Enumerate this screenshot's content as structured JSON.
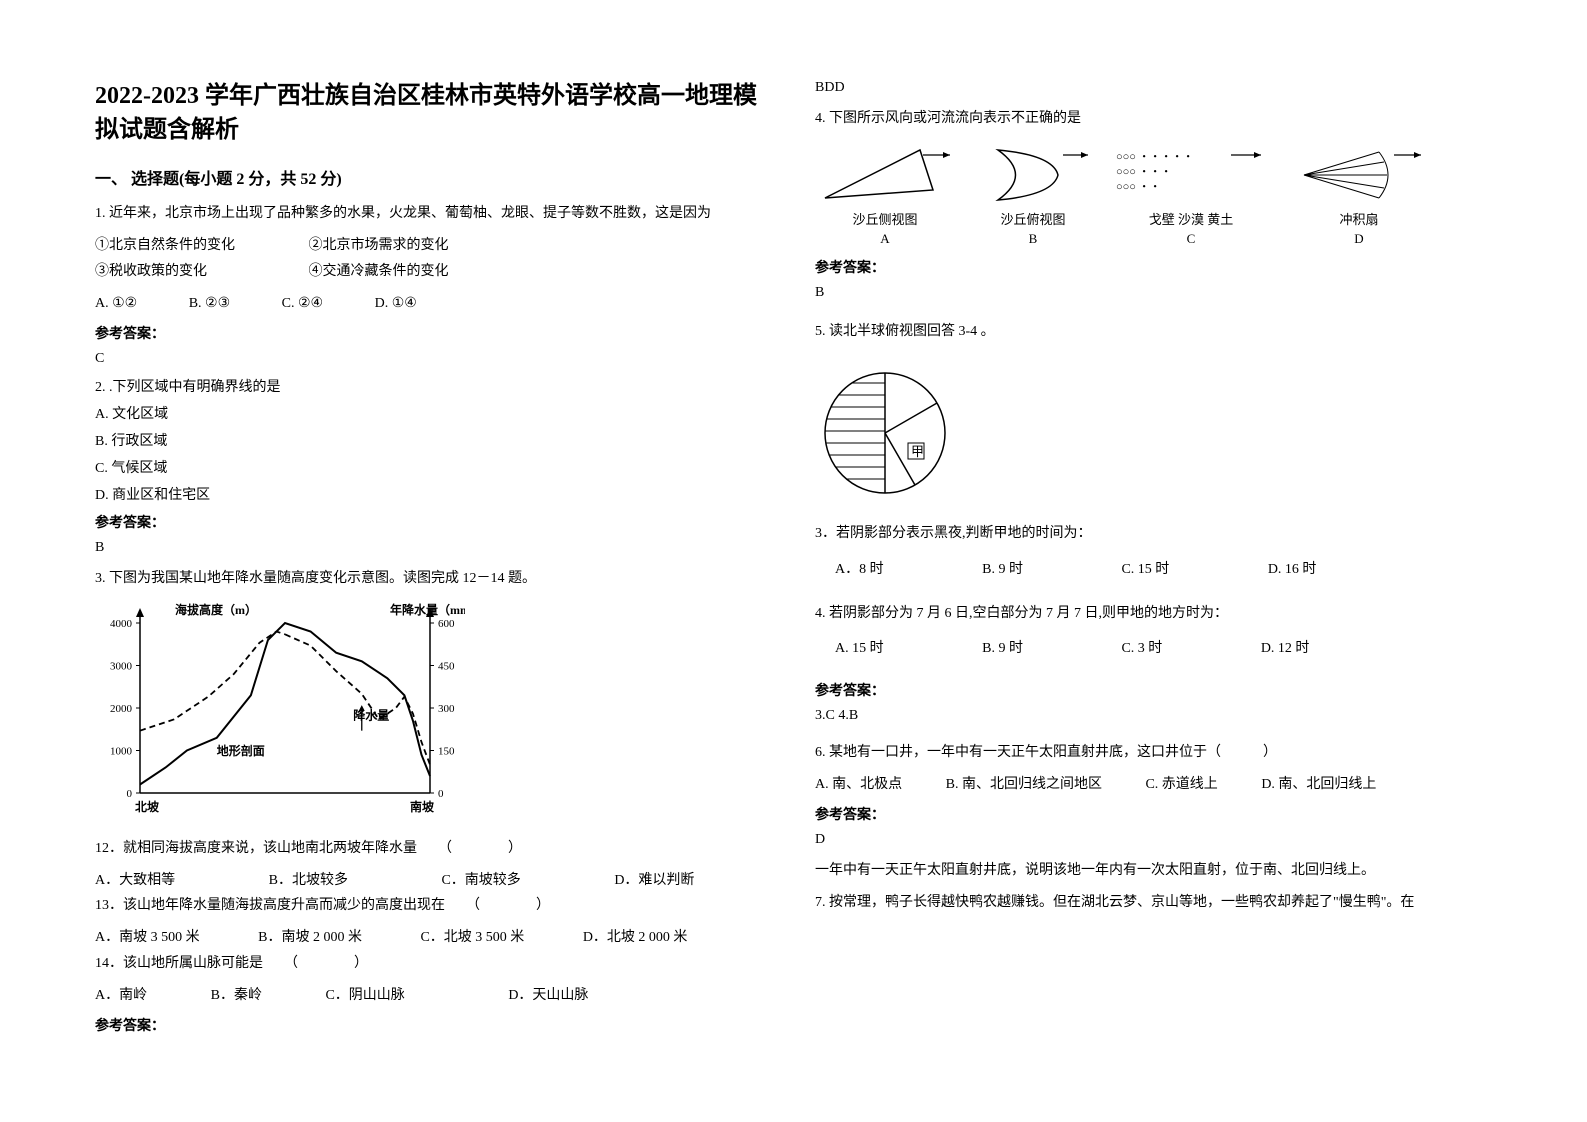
{
  "title": "2022-2023 学年广西壮族自治区桂林市英特外语学校高一地理模拟试题含解析",
  "section1_head": "一、 选择题(每小题 2 分，共 52 分)",
  "ans_label": "参考答案：",
  "q1_stem": "1. 近年来，北京市场上出现了品种繁多的水果，火龙果、葡萄柚、龙眼、提子等数不胜数，这是因为",
  "q1_l1": "①北京自然条件的变化",
  "q1_l2": "②北京市场需求的变化",
  "q1_l3": "③税收政策的变化",
  "q1_l4": "④交通冷藏条件的变化",
  "q1_oA": "A.  ①②",
  "q1_oB": "B.  ②③",
  "q1_oC": "C.  ②④",
  "q1_oD": "D.  ①④",
  "q1_ans": "C",
  "q2_stem": "2. .下列区域中有明确界线的是",
  "q2_oA": "A. 文化区域",
  "q2_oB": "B. 行政区域",
  "q2_oC": "C. 气候区域",
  "q2_oD": "D. 商业区和住宅区",
  "q2_ans": "B",
  "q3_stem": "3. 下图为我国某山地年降水量随高度变化示意图。读图完成 12－14 题。",
  "chart": {
    "type": "line",
    "y1_label": "海拔高度（m）",
    "y2_label": "年降水量（mm）",
    "x_left": "北坡",
    "x_right": "南坡",
    "legend1": "地形剖面",
    "legend2": "降水量",
    "y1_ticks": [
      0,
      1000,
      2000,
      3000,
      4000
    ],
    "y2_ticks": [
      0,
      150,
      300,
      450,
      600
    ],
    "terrain": [
      [
        0,
        200
      ],
      [
        30,
        600
      ],
      [
        55,
        1000
      ],
      [
        90,
        1300
      ],
      [
        130,
        2300
      ],
      [
        150,
        3600
      ],
      [
        170,
        4000
      ],
      [
        200,
        3800
      ],
      [
        230,
        3300
      ],
      [
        260,
        3100
      ],
      [
        290,
        2700
      ],
      [
        310,
        2300
      ],
      [
        320,
        1700
      ],
      [
        330,
        900
      ],
      [
        340,
        400
      ]
    ],
    "precip_n": [
      [
        0,
        220
      ],
      [
        40,
        260
      ],
      [
        80,
        340
      ],
      [
        110,
        420
      ],
      [
        140,
        530
      ],
      [
        160,
        570
      ],
      [
        170,
        560
      ]
    ],
    "precip_s": [
      [
        170,
        560
      ],
      [
        200,
        520
      ],
      [
        230,
        430
      ],
      [
        260,
        350
      ],
      [
        280,
        260
      ],
      [
        300,
        300
      ],
      [
        310,
        340
      ],
      [
        320,
        280
      ],
      [
        330,
        180
      ],
      [
        340,
        100
      ]
    ],
    "colors": {
      "axis": "#000000",
      "terrain": "#000000",
      "precip": "#000000",
      "bg": "#ffffff"
    },
    "font": {
      "label_size": 12,
      "tick_size": 11
    }
  },
  "q12_stem": "12．就相同海拔高度来说，该山地南北两坡年降水量　　（　　　　）",
  "q12_oA": "A．大致相等",
  "q12_oB": "B．北坡较多",
  "q12_oC": "C．南坡较多",
  "q12_oD": "D．难以判断",
  "q13_stem": "13．该山地年降水量随海拔高度升高而减少的高度出现在　　（　　　　）",
  "q13_oA": "A．南坡 3 500 米",
  "q13_oB": "B．南坡 2 000 米",
  "q13_oC": "C．北坡 3 500 米",
  "q13_oD": "D．北坡 2 000 米",
  "q14_stem": "14．该山地所属山脉可能是　　（　　　　）",
  "q14_oA": "A．南岭",
  "q14_oB": "B．秦岭",
  "q14_oC": "C．阴山山脉",
  "q14_oD": "D．天山山脉",
  "q3block_ans": "BDD",
  "q4_stem": "4. 下图所示风向或河流流向表示不正确的是",
  "dia": {
    "A_cap1": "沙丘侧视图",
    "A_cap2": "A",
    "B_cap1": "沙丘俯视图",
    "B_cap2": "B",
    "C_cap1": "戈壁 沙漠 黄土",
    "C_cap2": "C",
    "D_cap1": "冲积扇",
    "D_cap2": "D",
    "C_dots": "○○○ ・・・・・",
    "colors": {
      "stroke": "#000000"
    }
  },
  "q4_ans": "B",
  "q5_stem": "5. 读北半球俯视图回答 3-4 。",
  "q5_jia": "甲",
  "q5_3_stem": "3．若阴影部分表示黑夜,判断甲地的时间为：",
  "q5_3_oA": "A．8 时",
  "q5_3_oB": "B. 9 时",
  "q5_3_oC": "C. 15 时",
  "q5_3_oD": "D. 16 时",
  "q5_4_stem": "4. 若阴影部分为 7 月 6 日,空白部分为 7 月 7 日,则甲地的地方时为：",
  "q5_4_oA": "A. 15 时",
  "q5_4_oB": "B. 9 时",
  "q5_4_oC": "C. 3 时",
  "q5_4_oD": "D. 12 时",
  "q5_ans": "3.C  4.B",
  "q6_stem": "6. 某地有一口井，一年中有一天正午太阳直射井底，这口井位于（　　　）",
  "q6_oA": "A.  南、北极点",
  "q6_oB": "B.  南、北回归线之间地区",
  "q6_oC": "C.  赤道线上",
  "q6_oD": "D.  南、北回归线上",
  "q6_ans": "D",
  "q6_expl": "一年中有一天正午太阳直射井底，说明该地一年内有一次太阳直射，位于南、北回归线上。",
  "q7_stem": "7. 按常理，鸭子长得越快鸭农越赚钱。但在湖北云梦、京山等地，一些鸭农却养起了\"慢生鸭\"。在"
}
